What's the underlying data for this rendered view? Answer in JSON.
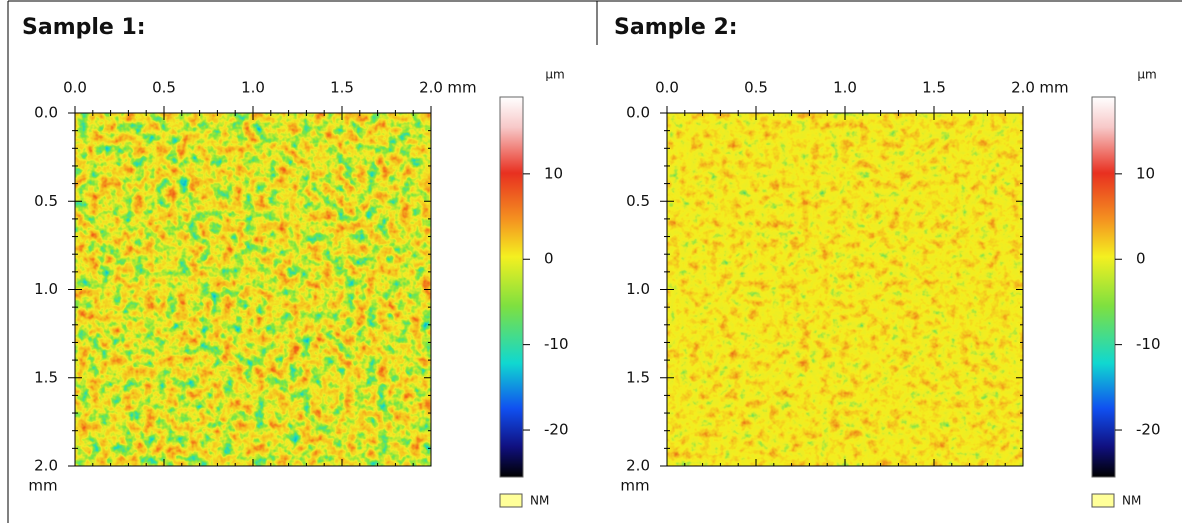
{
  "panels": [
    {
      "title": "Sample 1:",
      "x_unit": "mm",
      "y_unit": "mm",
      "x_range": [
        0,
        2
      ],
      "y_range": [
        0,
        2
      ],
      "x_ticks": [
        {
          "value": 0,
          "label": "0.0"
        },
        {
          "value": 0.5,
          "label": "0.5"
        },
        {
          "value": 1,
          "label": "1.0"
        },
        {
          "value": 1.5,
          "label": "1.5"
        },
        {
          "value": 2,
          "label": "2.0"
        }
      ],
      "y_ticks": [
        {
          "value": 0,
          "label": "0.0"
        },
        {
          "value": 0.5,
          "label": "0.5"
        },
        {
          "value": 1,
          "label": "1.0"
        },
        {
          "value": 1.5,
          "label": "1.5"
        },
        {
          "value": 2,
          "label": "2.0"
        }
      ],
      "colorbar": {
        "unit": "µm",
        "range": [
          -25.5,
          19
        ],
        "ticks": [
          10,
          0,
          -10,
          -20
        ]
      },
      "legend": "NM"
    },
    {
      "title": "Sample 2:",
      "x_unit": "mm",
      "y_unit": "mm",
      "x_range": [
        0,
        2
      ],
      "y_range": [
        0,
        2
      ],
      "x_ticks": [
        {
          "value": 0,
          "label": "0.0"
        },
        {
          "value": 0.5,
          "label": "0.5"
        },
        {
          "value": 1,
          "label": "1.0"
        },
        {
          "value": 1.5,
          "label": "1.5"
        },
        {
          "value": 2,
          "label": "2.0"
        }
      ],
      "y_ticks": [
        {
          "value": 0,
          "label": "0.0"
        },
        {
          "value": 0.5,
          "label": "0.5"
        },
        {
          "value": 1,
          "label": "1.0"
        },
        {
          "value": 1.5,
          "label": "1.5"
        },
        {
          "value": 2,
          "label": "2.0"
        }
      ],
      "colorbar": {
        "unit": "µm",
        "range": [
          -25.5,
          19
        ],
        "ticks": [
          10,
          0,
          -10,
          -20
        ]
      },
      "legend": "NM"
    }
  ]
}
